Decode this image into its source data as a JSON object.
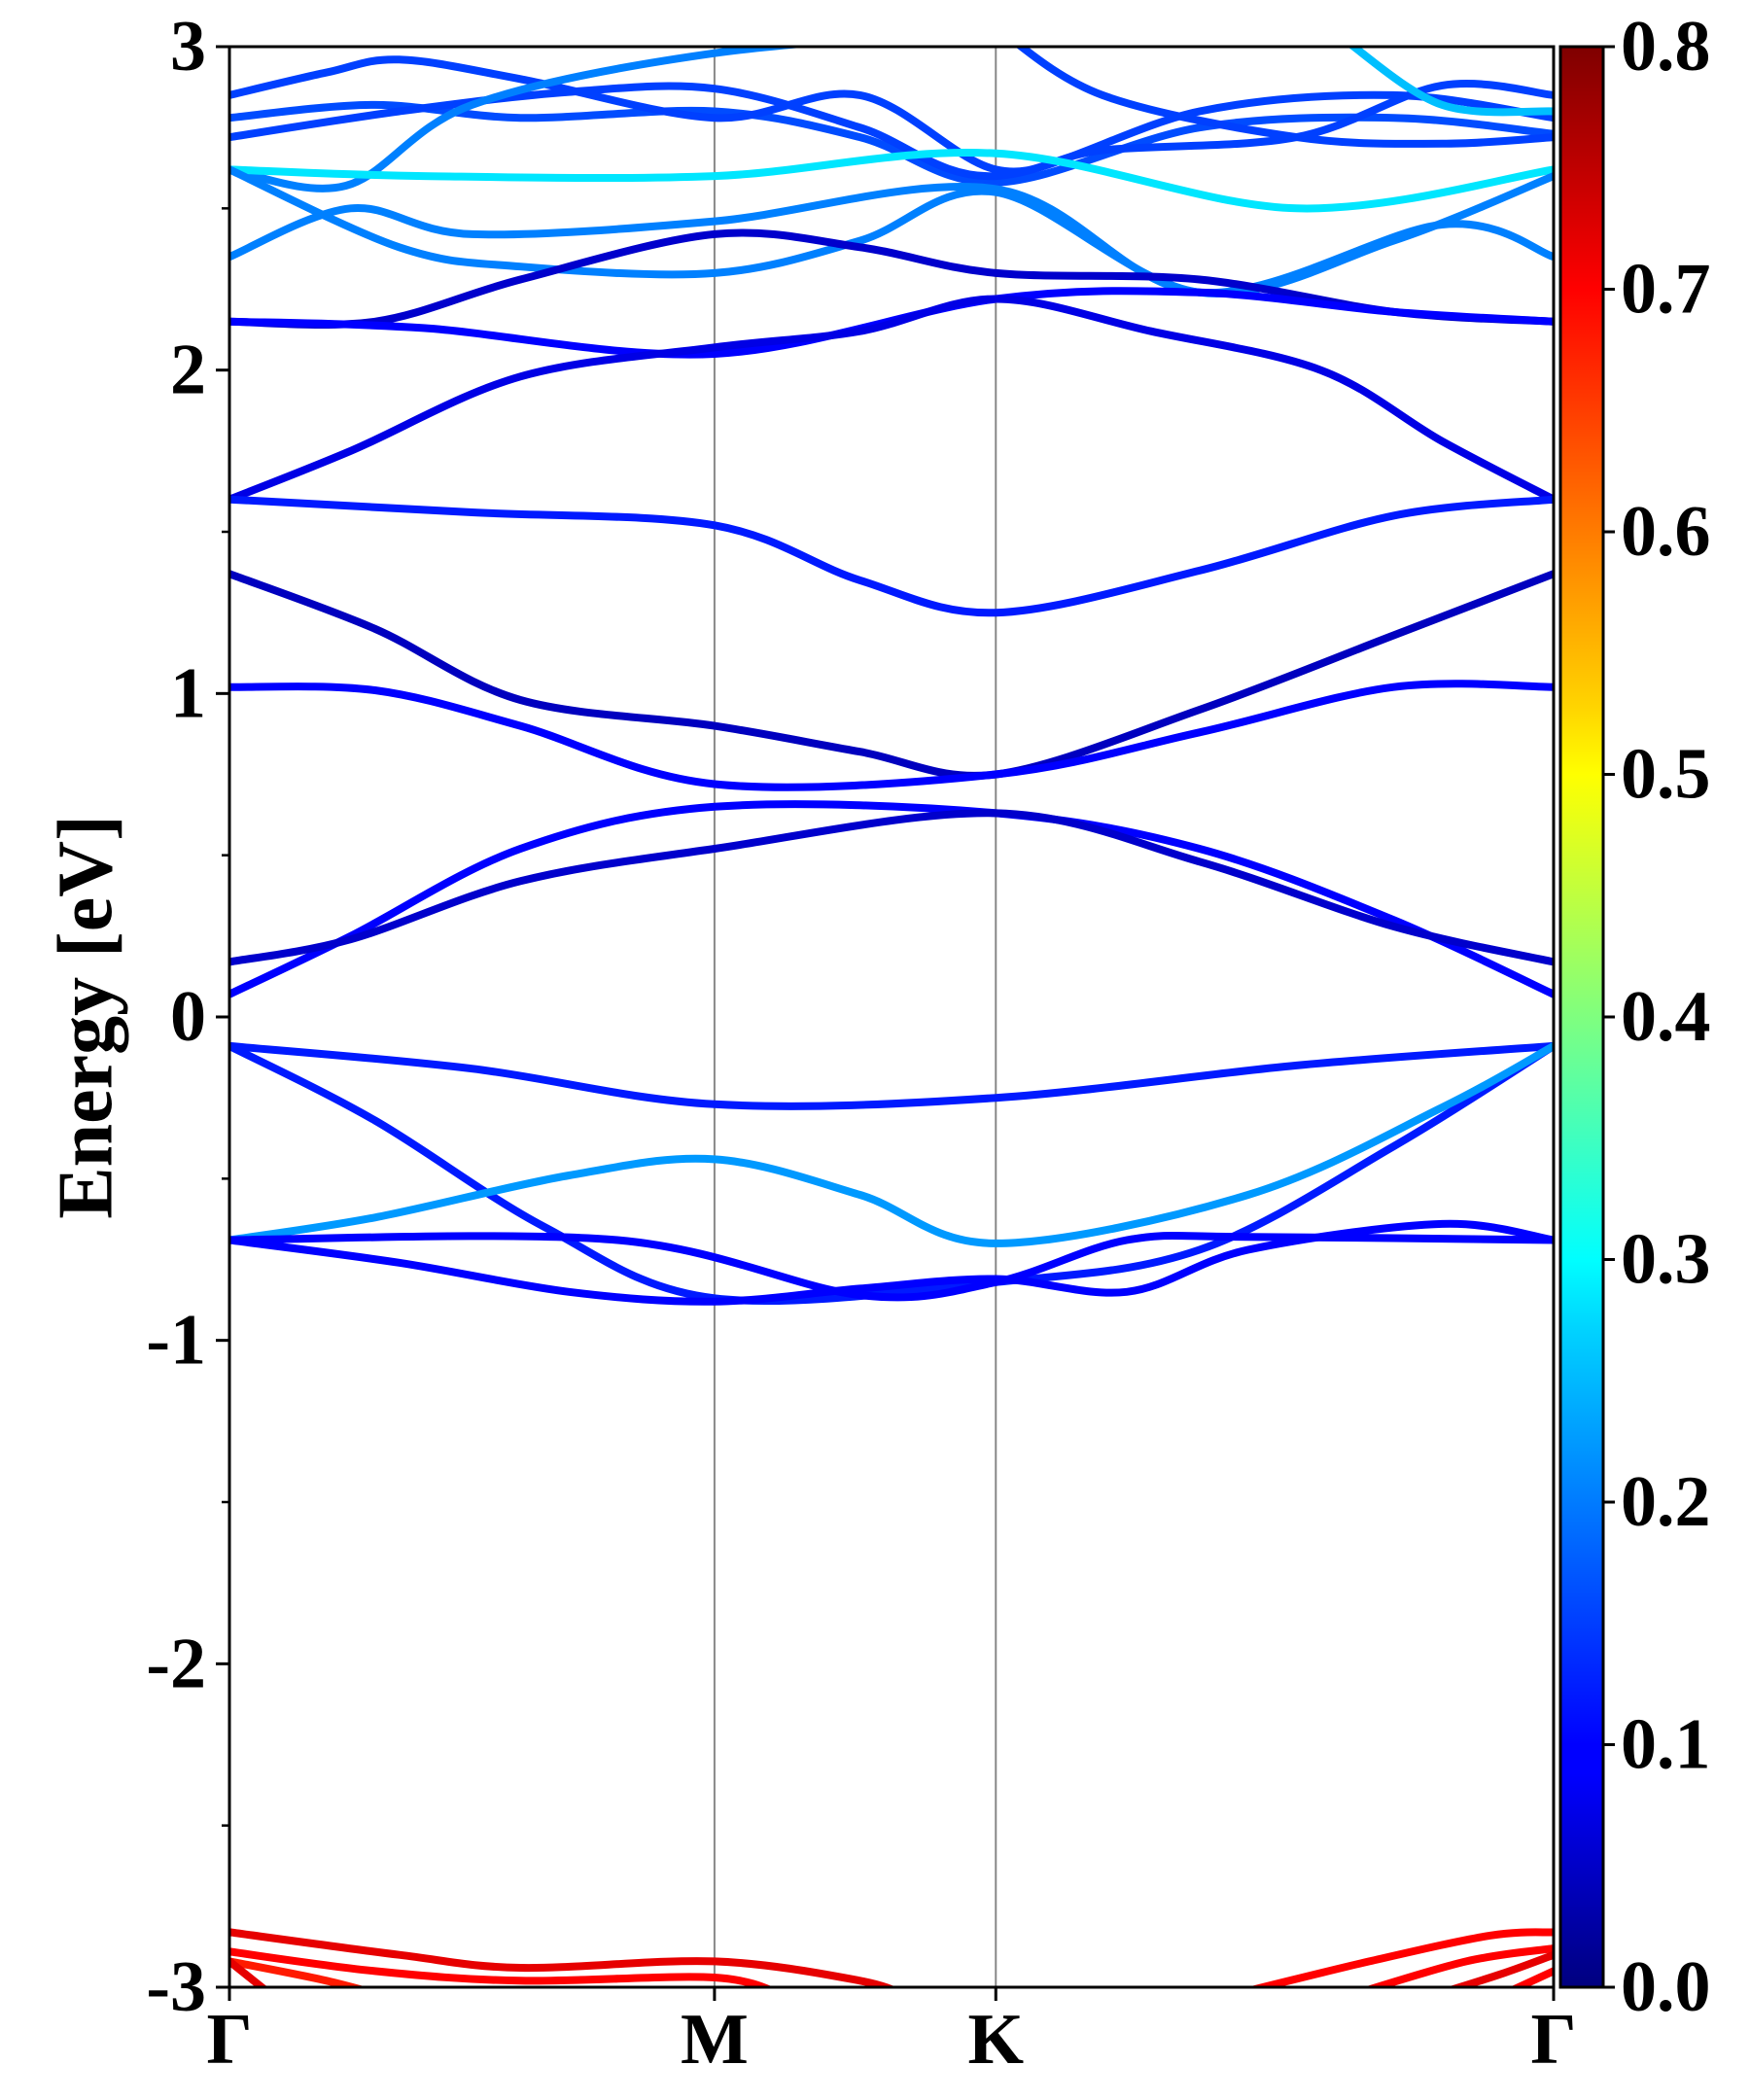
{
  "chart_data": {
    "type": "line",
    "ylabel": "Energy [eV]",
    "ylim": [
      -3,
      3
    ],
    "yticks": [
      -3,
      -2,
      -1,
      0,
      1,
      2,
      3
    ],
    "yminor_ticks": [
      -2.5,
      -1.5,
      -0.5,
      0.5,
      1.5,
      2.5
    ],
    "x_path": {
      "labels": [
        "Γ",
        "M",
        "K",
        "Γ"
      ],
      "positions": [
        0,
        1,
        1.58,
        2.73
      ]
    },
    "grid": false,
    "colorbar": {
      "range": [
        0.0,
        0.8
      ],
      "ticks": [
        "0.0",
        "0.1",
        "0.2",
        "0.3",
        "0.4",
        "0.5",
        "0.6",
        "0.7",
        "0.8"
      ],
      "colormap": "jet"
    },
    "series": [
      {
        "w": 0.16,
        "points": [
          [
            0,
            2.78
          ],
          [
            0.3,
            2.82
          ],
          [
            0.6,
            2.78
          ],
          [
            1,
            2.8
          ],
          [
            1.3,
            2.72
          ],
          [
            1.58,
            2.58
          ],
          [
            2.0,
            2.75
          ],
          [
            2.4,
            2.78
          ],
          [
            2.73,
            2.73
          ]
        ]
      },
      {
        "w": 0.15,
        "points": [
          [
            0,
            2.72
          ],
          [
            0.35,
            2.8
          ],
          [
            0.7,
            2.86
          ],
          [
            1,
            2.87
          ],
          [
            1.3,
            2.75
          ],
          [
            1.58,
            2.6
          ],
          [
            2.0,
            2.8
          ],
          [
            2.4,
            2.85
          ],
          [
            2.73,
            2.78
          ]
        ]
      },
      {
        "w": 0.15,
        "points": [
          [
            0,
            2.85
          ],
          [
            0.2,
            2.92
          ],
          [
            0.35,
            2.96
          ],
          [
            0.6,
            2.9
          ],
          [
            1,
            2.78
          ],
          [
            1.3,
            2.85
          ],
          [
            1.58,
            2.62
          ],
          [
            1.8,
            2.68
          ],
          [
            2.2,
            2.72
          ],
          [
            2.5,
            2.88
          ],
          [
            2.73,
            2.85
          ]
        ]
      },
      {
        "w": 0.2,
        "points": [
          [
            0,
            2.62
          ],
          [
            0.24,
            2.57
          ],
          [
            0.5,
            2.82
          ],
          [
            1,
            2.98
          ],
          [
            1.58,
            3.05
          ]
        ]
      },
      {
        "w": 0.28,
        "points": [
          [
            0,
            2.62
          ],
          [
            0.4,
            2.6
          ],
          [
            1,
            2.6
          ],
          [
            1.58,
            2.67
          ],
          [
            2.2,
            2.5
          ],
          [
            2.73,
            2.62
          ]
        ]
      },
      {
        "w": 0.15,
        "points": [
          [
            1.58,
            3.06
          ],
          [
            1.8,
            2.85
          ],
          [
            2.2,
            2.72
          ],
          [
            2.5,
            2.7
          ],
          [
            2.73,
            2.72
          ]
        ]
      },
      {
        "w": 0.25,
        "points": [
          [
            2.3,
            3.02
          ],
          [
            2.5,
            2.82
          ],
          [
            2.73,
            2.8
          ]
        ]
      },
      {
        "w": 0.2,
        "points": [
          [
            0,
            2.35
          ],
          [
            0.25,
            2.5
          ],
          [
            0.5,
            2.42
          ],
          [
            1,
            2.46
          ],
          [
            1.58,
            2.56
          ],
          [
            2.0,
            2.24
          ],
          [
            2.5,
            2.45
          ],
          [
            2.73,
            2.35
          ]
        ]
      },
      {
        "w": 0.2,
        "points": [
          [
            0,
            2.62
          ],
          [
            0.35,
            2.38
          ],
          [
            0.6,
            2.32
          ],
          [
            1,
            2.3
          ],
          [
            1.3,
            2.4
          ],
          [
            1.58,
            2.55
          ],
          [
            2.0,
            2.24
          ],
          [
            2.4,
            2.4
          ],
          [
            2.73,
            2.6
          ]
        ]
      },
      {
        "w": 0.06,
        "points": [
          [
            0,
            2.15
          ],
          [
            0.3,
            2.15
          ],
          [
            0.6,
            2.28
          ],
          [
            1,
            2.42
          ],
          [
            1.3,
            2.38
          ],
          [
            1.58,
            2.3
          ],
          [
            2.0,
            2.28
          ],
          [
            2.4,
            2.18
          ],
          [
            2.73,
            2.15
          ]
        ]
      },
      {
        "w": 0.1,
        "points": [
          [
            0,
            2.15
          ],
          [
            0.4,
            2.13
          ],
          [
            1,
            2.05
          ],
          [
            1.58,
            2.22
          ],
          [
            2.0,
            2.24
          ],
          [
            2.4,
            2.18
          ],
          [
            2.73,
            2.15
          ]
        ]
      },
      {
        "w": 0.08,
        "points": [
          [
            0,
            1.6
          ],
          [
            0.25,
            1.75
          ],
          [
            0.6,
            1.98
          ],
          [
            1,
            2.07
          ],
          [
            1.3,
            2.12
          ],
          [
            1.58,
            2.22
          ],
          [
            1.9,
            2.12
          ],
          [
            2.25,
            2.0
          ],
          [
            2.5,
            1.78
          ],
          [
            2.73,
            1.6
          ]
        ]
      },
      {
        "w": 0.12,
        "points": [
          [
            0,
            1.6
          ],
          [
            0.5,
            1.56
          ],
          [
            1,
            1.52
          ],
          [
            1.3,
            1.35
          ],
          [
            1.58,
            1.25
          ],
          [
            2.0,
            1.38
          ],
          [
            2.4,
            1.55
          ],
          [
            2.73,
            1.6
          ]
        ]
      },
      {
        "w": 0.05,
        "points": [
          [
            0,
            1.37
          ],
          [
            0.3,
            1.2
          ],
          [
            0.6,
            0.98
          ],
          [
            1,
            0.9
          ],
          [
            1.3,
            0.82
          ],
          [
            1.58,
            0.75
          ],
          [
            2.0,
            0.95
          ],
          [
            2.4,
            1.18
          ],
          [
            2.73,
            1.37
          ]
        ]
      },
      {
        "w": 0.1,
        "points": [
          [
            0,
            1.02
          ],
          [
            0.3,
            1.01
          ],
          [
            0.6,
            0.9
          ],
          [
            1,
            0.72
          ],
          [
            1.58,
            0.75
          ],
          [
            2.0,
            0.88
          ],
          [
            2.4,
            1.02
          ],
          [
            2.73,
            1.02
          ]
        ]
      },
      {
        "w": 0.1,
        "points": [
          [
            0,
            0.07
          ],
          [
            0.25,
            0.25
          ],
          [
            0.6,
            0.52
          ],
          [
            1,
            0.65
          ],
          [
            1.58,
            0.63
          ],
          [
            2.0,
            0.52
          ],
          [
            2.4,
            0.3
          ],
          [
            2.73,
            0.07
          ]
        ]
      },
      {
        "w": 0.06,
        "points": [
          [
            0,
            0.17
          ],
          [
            0.25,
            0.24
          ],
          [
            0.6,
            0.42
          ],
          [
            1,
            0.52
          ],
          [
            1.58,
            0.63
          ],
          [
            2.0,
            0.48
          ],
          [
            2.4,
            0.28
          ],
          [
            2.73,
            0.17
          ]
        ]
      },
      {
        "w": 0.12,
        "points": [
          [
            0,
            -0.09
          ],
          [
            0.5,
            -0.16
          ],
          [
            1,
            -0.27
          ],
          [
            1.58,
            -0.25
          ],
          [
            2.2,
            -0.15
          ],
          [
            2.73,
            -0.09
          ]
        ]
      },
      {
        "w": 0.12,
        "points": [
          [
            0,
            -0.09
          ],
          [
            0.3,
            -0.32
          ],
          [
            0.65,
            -0.65
          ],
          [
            1,
            -0.87
          ],
          [
            1.58,
            -0.82
          ],
          [
            2.0,
            -0.72
          ],
          [
            2.4,
            -0.4
          ],
          [
            2.73,
            -0.09
          ]
        ]
      },
      {
        "w": 0.22,
        "points": [
          [
            0,
            -0.69
          ],
          [
            0.3,
            -0.62
          ],
          [
            0.7,
            -0.49
          ],
          [
            1,
            -0.44
          ],
          [
            1.3,
            -0.55
          ],
          [
            1.58,
            -0.7
          ],
          [
            2.1,
            -0.55
          ],
          [
            2.5,
            -0.28
          ],
          [
            2.73,
            -0.09
          ]
        ]
      },
      {
        "w": 0.1,
        "points": [
          [
            0,
            -0.69
          ],
          [
            0.35,
            -0.76
          ],
          [
            0.7,
            -0.85
          ],
          [
            1,
            -0.88
          ],
          [
            1.3,
            -0.84
          ],
          [
            1.58,
            -0.81
          ],
          [
            1.85,
            -0.85
          ],
          [
            2.1,
            -0.72
          ],
          [
            2.5,
            -0.64
          ],
          [
            2.73,
            -0.69
          ]
        ]
      },
      {
        "w": 0.1,
        "points": [
          [
            0,
            -0.69
          ],
          [
            0.8,
            -0.69
          ],
          [
            1.3,
            -0.86
          ],
          [
            1.58,
            -0.82
          ],
          [
            1.85,
            -0.69
          ],
          [
            2.1,
            -0.68
          ],
          [
            2.73,
            -0.69
          ]
        ]
      },
      {
        "w": 0.72,
        "points": [
          [
            0,
            -2.83
          ],
          [
            0.35,
            -2.9
          ],
          [
            0.6,
            -2.94
          ],
          [
            1,
            -2.92
          ],
          [
            1.3,
            -2.98
          ],
          [
            1.4,
            -3.03
          ]
        ]
      },
      {
        "w": 0.7,
        "points": [
          [
            0,
            -2.89
          ],
          [
            0.3,
            -2.95
          ],
          [
            0.6,
            -2.98
          ],
          [
            1,
            -2.97
          ],
          [
            1.15,
            -3.03
          ]
        ]
      },
      {
        "w": 0.68,
        "points": [
          [
            0,
            -2.92
          ],
          [
            0.2,
            -2.98
          ],
          [
            0.35,
            -3.04
          ]
        ]
      },
      {
        "w": 0.72,
        "points": [
          [
            0,
            -2.92
          ],
          [
            0.1,
            -3.04
          ]
        ]
      },
      {
        "w": 0.7,
        "points": [
          [
            2.05,
            -3.03
          ],
          [
            2.35,
            -2.92
          ],
          [
            2.6,
            -2.84
          ],
          [
            2.73,
            -2.83
          ]
        ]
      },
      {
        "w": 0.7,
        "points": [
          [
            2.3,
            -3.03
          ],
          [
            2.55,
            -2.92
          ],
          [
            2.73,
            -2.88
          ]
        ]
      },
      {
        "w": 0.72,
        "points": [
          [
            2.45,
            -3.04
          ],
          [
            2.62,
            -2.96
          ],
          [
            2.73,
            -2.9
          ]
        ]
      },
      {
        "w": 0.7,
        "points": [
          [
            2.6,
            -3.04
          ],
          [
            2.73,
            -2.95
          ]
        ]
      }
    ]
  }
}
